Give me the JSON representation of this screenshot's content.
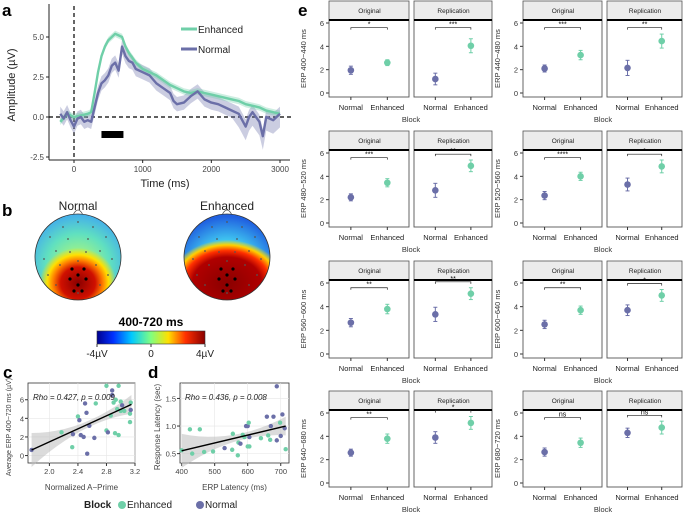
{
  "colors": {
    "enhanced": "#6fcfa8",
    "normal": "#6b6fa8"
  },
  "panel_labels": {
    "a": "a",
    "b": "b",
    "c": "c",
    "d": "d",
    "e": "e"
  },
  "chart_data": [
    {
      "id": "a",
      "type": "line",
      "xlabel": "Time (ms)",
      "ylabel": "Amplitude (µV)",
      "xlim": [
        -250,
        3100
      ],
      "ylim": [
        -2.6,
        6.8
      ],
      "xticks": [
        0,
        1000,
        2000,
        3000
      ],
      "yticks": [
        -2.5,
        0.0,
        2.5,
        5.0
      ],
      "ytick_labels": [
        "-2.5",
        "0.0",
        "2.5",
        "5.0"
      ],
      "legend": [
        "Enhanced",
        "Normal"
      ],
      "legend_position": "top-right",
      "significance_bar_ms": [
        400,
        720
      ],
      "series": [
        {
          "name": "Enhanced",
          "x": [
            -200,
            -100,
            0,
            100,
            200,
            250,
            300,
            350,
            400,
            450,
            500,
            550,
            600,
            650,
            700,
            750,
            800,
            900,
            1000,
            1100,
            1200,
            1300,
            1400,
            1500,
            1600,
            1700,
            1800,
            1900,
            2000,
            2100,
            2200,
            2300,
            2400,
            2500,
            2600,
            2700,
            2800,
            2900,
            3000
          ],
          "y": [
            -0.3,
            0.2,
            0.0,
            0.1,
            0.2,
            0.3,
            1.5,
            2.8,
            3.8,
            4.4,
            4.8,
            5.0,
            5.2,
            5.1,
            5.0,
            4.4,
            4.0,
            3.4,
            3.0,
            2.8,
            2.6,
            2.3,
            2.0,
            1.8,
            1.6,
            1.5,
            1.6,
            1.5,
            1.4,
            1.3,
            1.2,
            1.1,
            1.0,
            0.8,
            0.7,
            0.6,
            0.4,
            0.3,
            0.2
          ]
        },
        {
          "name": "Normal",
          "x": [
            -200,
            -150,
            -100,
            -50,
            0,
            50,
            100,
            150,
            200,
            250,
            300,
            350,
            400,
            450,
            500,
            550,
            600,
            650,
            700,
            750,
            800,
            850,
            900,
            1000,
            1100,
            1200,
            1300,
            1400,
            1450,
            1500,
            1600,
            1700,
            1800,
            1900,
            2000,
            2100,
            2200,
            2300,
            2400,
            2450,
            2500,
            2550,
            2600,
            2700,
            2750,
            2800,
            2900,
            3000
          ],
          "y": [
            0.2,
            -0.1,
            0.3,
            -0.2,
            -0.6,
            -0.1,
            0.0,
            -0.3,
            -0.2,
            -0.3,
            0.6,
            1.5,
            2.1,
            2.3,
            2.6,
            3.2,
            3.4,
            2.9,
            4.4,
            3.8,
            3.5,
            3.4,
            3.0,
            2.8,
            2.6,
            2.1,
            1.8,
            1.5,
            1.0,
            0.8,
            0.9,
            1.3,
            1.6,
            1.1,
            0.9,
            0.8,
            0.6,
            0.4,
            0.2,
            -0.2,
            -0.6,
            0.0,
            0.3,
            -0.3,
            -1.2,
            0.0,
            -0.2,
            0.2
          ]
        }
      ]
    },
    {
      "id": "b",
      "type": "heatmap",
      "titles": [
        "Normal",
        "Enhanced"
      ],
      "colorbar_title": "400-720 ms",
      "colorbar_ticks": [
        "-4µV",
        "0",
        "4µV"
      ],
      "colorbar_range": [
        -4,
        4
      ]
    },
    {
      "id": "c",
      "type": "scatter",
      "xlabel": "Normalized A−Prime",
      "ylabel": "Average ERP 400−720 ms (µV)",
      "annotation": "Rho = 0.427, p = 0.009",
      "xlim": [
        1.7,
        3.2
      ],
      "ylim": [
        -0.8,
        7.8
      ],
      "xticks": [
        2.0,
        2.4,
        2.8,
        3.2
      ],
      "xtick_labels": [
        "2.0",
        "2.4",
        "2.8",
        "3.2"
      ],
      "yticks": [
        0,
        2,
        4,
        6
      ],
      "ytick_labels": [
        "0",
        "2",
        "4",
        "6"
      ],
      "fit": [
        [
          1.75,
          0.6
        ],
        [
          3.15,
          5.5
        ]
      ],
      "points": [
        [
          1.75,
          0.6,
          "N"
        ],
        [
          2.17,
          2.5,
          "E"
        ],
        [
          2.32,
          0.9,
          "E"
        ],
        [
          2.33,
          2.3,
          "N"
        ],
        [
          2.4,
          4.2,
          "E"
        ],
        [
          2.42,
          3.8,
          "N"
        ],
        [
          2.44,
          2.2,
          "N"
        ],
        [
          2.48,
          2.0,
          "N"
        ],
        [
          2.5,
          5.6,
          "N"
        ],
        [
          2.52,
          4.6,
          "N"
        ],
        [
          2.53,
          0.2,
          "N"
        ],
        [
          2.56,
          3.2,
          "N"
        ],
        [
          2.63,
          1.9,
          "N"
        ],
        [
          2.65,
          5.6,
          "E"
        ],
        [
          2.8,
          2.7,
          "E"
        ],
        [
          2.8,
          7.5,
          "E"
        ],
        [
          2.82,
          2.5,
          "N"
        ],
        [
          2.86,
          4.3,
          "E"
        ],
        [
          2.88,
          6.5,
          "N"
        ],
        [
          2.88,
          7.0,
          "N"
        ],
        [
          2.9,
          5.7,
          "E"
        ],
        [
          2.92,
          2.4,
          "E"
        ],
        [
          2.93,
          6.0,
          "E"
        ],
        [
          2.95,
          5.0,
          "E"
        ],
        [
          2.97,
          2.2,
          "E"
        ],
        [
          2.97,
          7.5,
          "E"
        ],
        [
          3.0,
          5.8,
          "E"
        ],
        [
          3.0,
          4.8,
          "E"
        ],
        [
          3.02,
          5.4,
          "N"
        ],
        [
          3.05,
          4.8,
          "E"
        ],
        [
          3.13,
          4.5,
          "E"
        ],
        [
          3.13,
          3.6,
          "E"
        ],
        [
          3.14,
          4.9,
          "N"
        ],
        [
          3.14,
          5.7,
          "E"
        ]
      ]
    },
    {
      "id": "d",
      "type": "scatter",
      "xlabel": "ERP Latency (ms)",
      "ylabel": "Response Latency (sec)",
      "annotation": "Rho = 0.436, p = 0.008",
      "xlim": [
        395,
        725
      ],
      "ylim": [
        0.33,
        1.78
      ],
      "xticks": [
        400,
        500,
        600,
        700
      ],
      "xtick_labels": [
        "400",
        "500",
        "600",
        "700"
      ],
      "yticks": [
        0.5,
        1.0,
        1.5
      ],
      "ytick_labels": [
        "0.5",
        "1.0",
        "1.5"
      ],
      "fit": [
        [
          400,
          0.55
        ],
        [
          715,
          1.0
        ]
      ],
      "points": [
        [
          400,
          0.56,
          "E"
        ],
        [
          425,
          0.94,
          "E"
        ],
        [
          432,
          0.5,
          "E"
        ],
        [
          455,
          0.94,
          "E"
        ],
        [
          468,
          0.53,
          "E"
        ],
        [
          495,
          0.54,
          "E"
        ],
        [
          530,
          0.6,
          "N"
        ],
        [
          553,
          0.57,
          "E"
        ],
        [
          555,
          0.86,
          "E"
        ],
        [
          570,
          0.47,
          "E"
        ],
        [
          572,
          0.7,
          "E"
        ],
        [
          578,
          0.68,
          "N"
        ],
        [
          585,
          0.84,
          "E"
        ],
        [
          590,
          0.8,
          "E"
        ],
        [
          595,
          1.0,
          "N"
        ],
        [
          600,
          1.0,
          "N"
        ],
        [
          600,
          0.63,
          "E"
        ],
        [
          603,
          1.06,
          "E"
        ],
        [
          605,
          0.63,
          "E"
        ],
        [
          605,
          0.8,
          "N"
        ],
        [
          640,
          0.78,
          "E"
        ],
        [
          658,
          1.17,
          "N"
        ],
        [
          662,
          0.83,
          "E"
        ],
        [
          668,
          0.75,
          "E"
        ],
        [
          670,
          1.0,
          "N"
        ],
        [
          678,
          1.17,
          "N"
        ],
        [
          688,
          1.72,
          "N"
        ],
        [
          688,
          0.74,
          "N"
        ],
        [
          698,
          1.06,
          "E"
        ],
        [
          700,
          0.82,
          "N"
        ],
        [
          705,
          1.21,
          "N"
        ],
        [
          712,
          0.96,
          "N"
        ],
        [
          715,
          0.58,
          "E"
        ]
      ]
    },
    {
      "id": "e",
      "type": "scatter",
      "xlabel": "Block",
      "categories": [
        "Normal",
        "Enhanced"
      ],
      "facets": [
        "Original",
        "Replication"
      ],
      "ylim": [
        -0.3,
        7.5
      ],
      "yticks": [
        0,
        2,
        4,
        6
      ],
      "ytick_labels": [
        "0",
        "2",
        "4",
        "6"
      ],
      "panels": [
        {
          "ylabel": "ERP 400−440 ms",
          "original": {
            "normal": [
              1.95,
              0.35
            ],
            "enhanced": [
              2.6,
              0.25
            ],
            "sig": "*"
          },
          "replication": {
            "normal": [
              1.2,
              0.5
            ],
            "enhanced": [
              4.05,
              0.6
            ],
            "sig": "***"
          }
        },
        {
          "ylabel": "ERP 440−480 ms",
          "original": {
            "normal": [
              2.1,
              0.3
            ],
            "enhanced": [
              3.25,
              0.4
            ],
            "sig": "***"
          },
          "replication": {
            "normal": [
              2.15,
              0.65
            ],
            "enhanced": [
              4.45,
              0.6
            ],
            "sig": "**"
          }
        },
        {
          "ylabel": "ERP 480−520 ms",
          "original": {
            "normal": [
              2.2,
              0.3
            ],
            "enhanced": [
              3.45,
              0.35
            ],
            "sig": "***"
          },
          "replication": {
            "normal": [
              2.8,
              0.6
            ],
            "enhanced": [
              4.9,
              0.5
            ],
            "sig": "**"
          }
        },
        {
          "ylabel": "ERP 520−560 ms",
          "original": {
            "normal": [
              2.35,
              0.35
            ],
            "enhanced": [
              4.0,
              0.35
            ],
            "sig": "****"
          },
          "replication": {
            "normal": [
              3.3,
              0.55
            ],
            "enhanced": [
              4.85,
              0.55
            ],
            "sig": "*"
          }
        },
        {
          "ylabel": "ERP 560−600 ms",
          "original": {
            "normal": [
              2.65,
              0.35
            ],
            "enhanced": [
              3.8,
              0.4
            ],
            "sig": "**"
          },
          "replication": {
            "normal": [
              3.35,
              0.6
            ],
            "enhanced": [
              5.1,
              0.5
            ],
            "sig": "**"
          }
        },
        {
          "ylabel": "ERP 600−640 ms",
          "original": {
            "normal": [
              2.5,
              0.35
            ],
            "enhanced": [
              3.7,
              0.35
            ],
            "sig": "**"
          },
          "replication": {
            "normal": [
              3.7,
              0.45
            ],
            "enhanced": [
              4.95,
              0.5
            ],
            "sig": "*"
          }
        },
        {
          "ylabel": "ERP 640−680 ms",
          "original": {
            "normal": [
              2.6,
              0.3
            ],
            "enhanced": [
              3.8,
              0.4
            ],
            "sig": "**"
          },
          "replication": {
            "normal": [
              3.9,
              0.5
            ],
            "enhanced": [
              5.15,
              0.55
            ],
            "sig": "*"
          }
        },
        {
          "ylabel": "ERP 680−720 ms",
          "original": {
            "normal": [
              2.65,
              0.35
            ],
            "enhanced": [
              3.45,
              0.4
            ],
            "sig": "ns"
          },
          "replication": {
            "normal": [
              4.3,
              0.4
            ],
            "enhanced": [
              4.75,
              0.55
            ],
            "sig": "ns"
          }
        }
      ]
    }
  ],
  "legend": {
    "title": "Block",
    "items": [
      "Enhanced",
      "Normal"
    ]
  }
}
